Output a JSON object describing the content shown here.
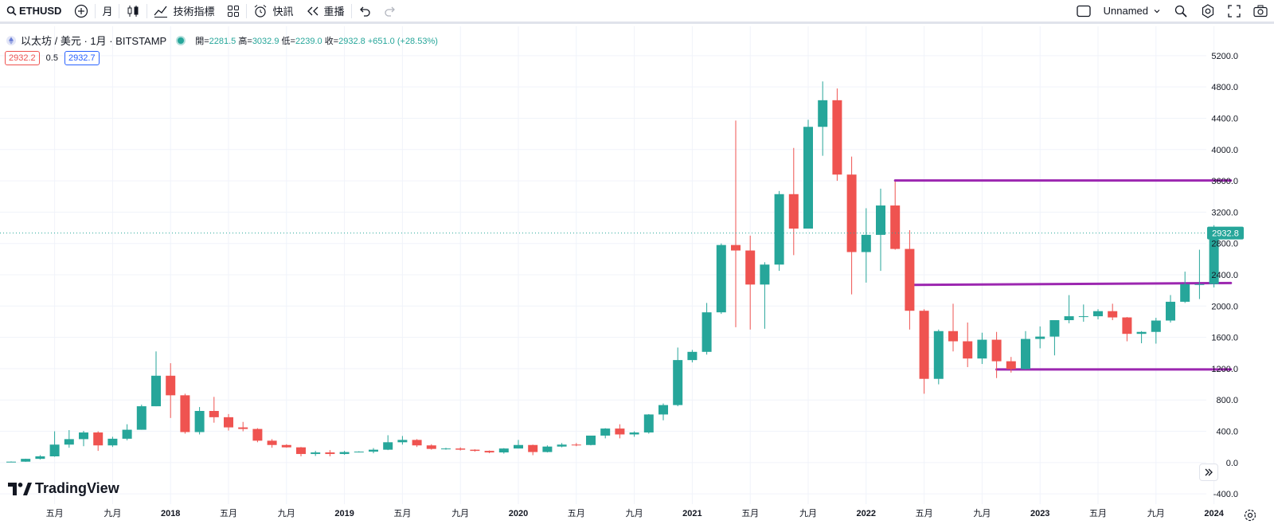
{
  "toolbar": {
    "symbol": "ETHUSD",
    "interval": "月",
    "indicators_label": "技術指標",
    "alerts_label": "快訊",
    "replay_label": "重播",
    "layout_name": "Unnamed"
  },
  "legend": {
    "title": "以太坊 / 美元 · 1月 · BITSTAMP",
    "open_label": "開=",
    "open": "2281.5",
    "high_label": "高=",
    "high": "3032.9",
    "low_label": "低=",
    "low": "2239.0",
    "close_label": "收=",
    "close": "2932.8",
    "change": "+651.0 (+28.53%)",
    "sell_price": "2932.2",
    "spread": "0.5",
    "buy_price": "2932.7"
  },
  "logo_text": "TradingView",
  "colors": {
    "up": "#26a69a",
    "down": "#ef5350",
    "level_line": "#9c27b0",
    "price_label_bg": "#26a69a"
  },
  "chart_data": {
    "type": "candlestick",
    "symbol": "ETHUSD",
    "interval": "1M",
    "y_axis": {
      "ticks": [
        "-400.0",
        "0.0",
        "400.0",
        "800.0",
        "1200.0",
        "1600.0",
        "2000.0",
        "2400.0",
        "2800.0",
        "3200.0",
        "3600.0",
        "4000.0",
        "4400.0",
        "4800.0",
        "5200.0"
      ],
      "ylim": [
        -500,
        5300
      ]
    },
    "x_axis": {
      "ticks": [
        {
          "label": "五月",
          "bold": false
        },
        {
          "label": "九月",
          "bold": false
        },
        {
          "label": "2018",
          "bold": true
        },
        {
          "label": "五月",
          "bold": false
        },
        {
          "label": "九月",
          "bold": false
        },
        {
          "label": "2019",
          "bold": true
        },
        {
          "label": "五月",
          "bold": false
        },
        {
          "label": "九月",
          "bold": false
        },
        {
          "label": "2020",
          "bold": true
        },
        {
          "label": "五月",
          "bold": false
        },
        {
          "label": "九月",
          "bold": false
        },
        {
          "label": "2021",
          "bold": true
        },
        {
          "label": "五月",
          "bold": false
        },
        {
          "label": "九月",
          "bold": false
        },
        {
          "label": "2022",
          "bold": true
        },
        {
          "label": "五月",
          "bold": false
        },
        {
          "label": "九月",
          "bold": false
        },
        {
          "label": "2023",
          "bold": true
        },
        {
          "label": "五月",
          "bold": false
        },
        {
          "label": "九月",
          "bold": false
        },
        {
          "label": "2024",
          "bold": true
        }
      ]
    },
    "last_price_label": "2932.8",
    "last_price": 2932.8,
    "first_period": "2017-02",
    "candles": [
      [
        10,
        15,
        8,
        12
      ],
      [
        12,
        50,
        10,
        48
      ],
      [
        48,
        95,
        40,
        80
      ],
      [
        80,
        400,
        75,
        230
      ],
      [
        230,
        415,
        190,
        300
      ],
      [
        300,
        405,
        210,
        385
      ],
      [
        385,
        400,
        150,
        220
      ],
      [
        220,
        330,
        200,
        305
      ],
      [
        305,
        490,
        285,
        420
      ],
      [
        420,
        740,
        420,
        720
      ],
      [
        720,
        1420,
        720,
        1110
      ],
      [
        1110,
        1270,
        570,
        860
      ],
      [
        860,
        880,
        370,
        390
      ],
      [
        390,
        710,
        360,
        660
      ],
      [
        660,
        840,
        510,
        580
      ],
      [
        580,
        620,
        410,
        450
      ],
      [
        450,
        520,
        400,
        430
      ],
      [
        430,
        440,
        260,
        280
      ],
      [
        280,
        300,
        190,
        225
      ],
      [
        225,
        235,
        190,
        195
      ],
      [
        195,
        200,
        80,
        110
      ],
      [
        110,
        150,
        85,
        130
      ],
      [
        130,
        160,
        80,
        110
      ],
      [
        110,
        150,
        100,
        135
      ],
      [
        135,
        145,
        130,
        140
      ],
      [
        140,
        185,
        120,
        165
      ],
      [
        165,
        350,
        160,
        260
      ],
      [
        260,
        340,
        230,
        290
      ],
      [
        290,
        300,
        200,
        220
      ],
      [
        220,
        235,
        165,
        175
      ],
      [
        175,
        190,
        165,
        180
      ],
      [
        180,
        195,
        155,
        165
      ],
      [
        165,
        170,
        140,
        150
      ],
      [
        150,
        155,
        120,
        130
      ],
      [
        130,
        185,
        115,
        180
      ],
      [
        180,
        290,
        180,
        225
      ],
      [
        225,
        230,
        95,
        135
      ],
      [
        135,
        220,
        130,
        205
      ],
      [
        205,
        250,
        195,
        230
      ],
      [
        230,
        250,
        210,
        225
      ],
      [
        225,
        345,
        220,
        345
      ],
      [
        345,
        440,
        310,
        435
      ],
      [
        435,
        490,
        310,
        360
      ],
      [
        360,
        400,
        330,
        385
      ],
      [
        385,
        620,
        370,
        615
      ],
      [
        615,
        755,
        540,
        735
      ],
      [
        735,
        1470,
        720,
        1310
      ],
      [
        1310,
        1440,
        1280,
        1415
      ],
      [
        1415,
        2040,
        1380,
        1920
      ],
      [
        1920,
        2800,
        1900,
        2780
      ],
      [
        2780,
        4370,
        1730,
        2710
      ],
      [
        2710,
        2900,
        1700,
        2275
      ],
      [
        2275,
        2560,
        1710,
        2530
      ],
      [
        2530,
        3470,
        2450,
        3430
      ],
      [
        3430,
        4020,
        2650,
        2990
      ],
      [
        2990,
        4380,
        2990,
        4290
      ],
      [
        4290,
        4870,
        3920,
        4630
      ],
      [
        4630,
        4780,
        3600,
        3680
      ],
      [
        3680,
        3910,
        2150,
        2690
      ],
      [
        2690,
        3250,
        2300,
        2910
      ],
      [
        2910,
        3500,
        2450,
        3285
      ],
      [
        3285,
        3590,
        2720,
        2730
      ],
      [
        2730,
        2970,
        1700,
        1940
      ],
      [
        1940,
        1960,
        880,
        1070
      ],
      [
        1070,
        1700,
        1000,
        1680
      ],
      [
        1680,
        2030,
        1420,
        1550
      ],
      [
        1550,
        1790,
        1220,
        1330
      ],
      [
        1330,
        1660,
        1260,
        1570
      ],
      [
        1570,
        1670,
        1080,
        1295
      ],
      [
        1295,
        1350,
        1150,
        1195
      ],
      [
        1195,
        1680,
        1190,
        1580
      ],
      [
        1580,
        1740,
        1460,
        1610
      ],
      [
        1610,
        1820,
        1370,
        1820
      ],
      [
        1820,
        2140,
        1780,
        1870
      ],
      [
        1870,
        2020,
        1800,
        1870
      ],
      [
        1870,
        1960,
        1830,
        1935
      ],
      [
        1935,
        2030,
        1820,
        1855
      ],
      [
        1855,
        1860,
        1550,
        1645
      ],
      [
        1645,
        1680,
        1525,
        1670
      ],
      [
        1670,
        1850,
        1520,
        1815
      ],
      [
        1815,
        2140,
        1790,
        2055
      ],
      [
        2055,
        2440,
        2040,
        2280
      ],
      [
        2280,
        2720,
        2090,
        2280
      ],
      [
        2281.5,
        3032.9,
        2239.0,
        2932.8
      ]
    ],
    "horizontal_lines": [
      {
        "from": "2022-03",
        "to": "2024-02",
        "y1": 3605,
        "y2": 3605
      },
      {
        "from": "2022-04",
        "to": "2024-02",
        "y1": 2270,
        "y2": 2295
      },
      {
        "from": "2022-10",
        "to": "2024-02",
        "y1": 1190,
        "y2": 1190
      }
    ]
  }
}
